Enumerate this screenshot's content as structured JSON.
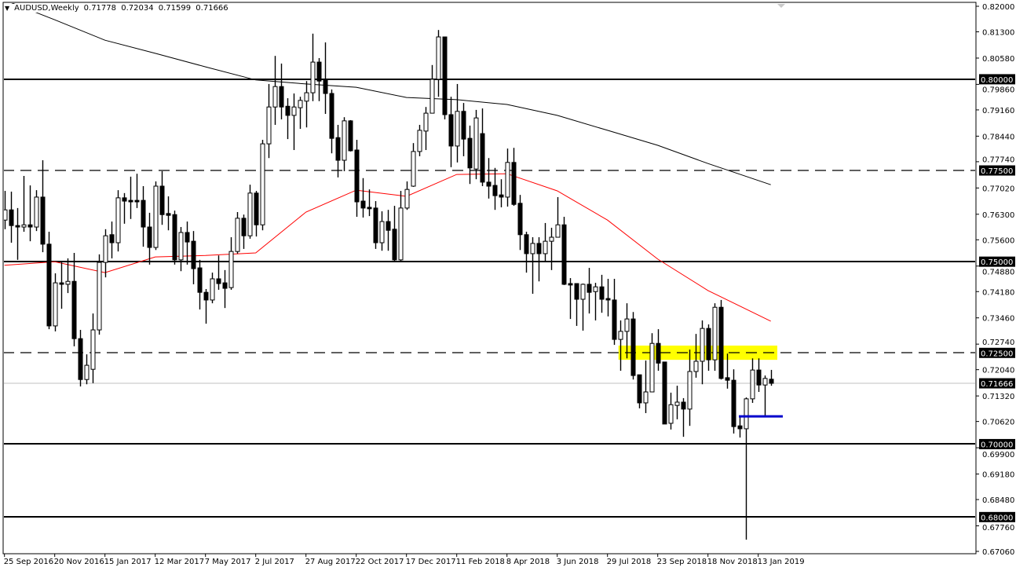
{
  "header": {
    "symbol": "AUDUSD,Weekly",
    "open": "0.71778",
    "high": "0.72034",
    "low": "0.71599",
    "close": "0.71666",
    "menu_icon": "triangle-down-icon"
  },
  "colors": {
    "background": "#ffffff",
    "candle_bull": "#ffffff",
    "candle_bear": "#000000",
    "ma_fast": "#ff0000",
    "ma_slow": "#000000",
    "zone": "#ffff00",
    "support_marker": "#0000cc",
    "current_price_line": "#c0c0c0"
  },
  "chart_data": {
    "type": "candlestick",
    "title": "AUDUSD,Weekly",
    "ylim": [
      0.6706,
      0.82
    ],
    "grid": false,
    "x_tick_labels": [
      "25 Sep 2016",
      "20 Nov 2016",
      "15 Jan 2017",
      "12 Mar 2017",
      "7 May 2017",
      "2 Jul 2017",
      "27 Aug 2017",
      "22 Oct 2017",
      "17 Dec 2017",
      "11 Feb 2018",
      "8 Apr 2018",
      "3 Jun 2018",
      "29 Jul 2018",
      "23 Sep 2018",
      "18 Nov 2018",
      "13 Jan 2019"
    ],
    "x_tick_every_n_candles": 8,
    "y_tick_labels": [
      "0.82000",
      "0.81300",
      "0.80580",
      "0.79860",
      "0.79160",
      "0.78440",
      "0.77740",
      "0.77020",
      "0.76300",
      "0.75600",
      "0.74880",
      "0.74180",
      "0.73460",
      "0.72740",
      "0.72040",
      "0.71320",
      "0.70620",
      "0.69900",
      "0.69180",
      "0.68480",
      "0.67760",
      "0.67060"
    ],
    "candles_ohlc": [
      [
        0.7614,
        0.7694,
        0.7589,
        0.7642
      ],
      [
        0.7642,
        0.7692,
        0.7552,
        0.7599
      ],
      [
        0.7599,
        0.7647,
        0.7505,
        0.7595
      ],
      [
        0.7595,
        0.7735,
        0.7582,
        0.7601
      ],
      [
        0.7601,
        0.7709,
        0.7556,
        0.7595
      ],
      [
        0.7595,
        0.7696,
        0.7584,
        0.7677
      ],
      [
        0.7677,
        0.7778,
        0.7526,
        0.7548
      ],
      [
        0.7548,
        0.7582,
        0.7315,
        0.7324
      ],
      [
        0.7324,
        0.7468,
        0.7309,
        0.7442
      ],
      [
        0.7442,
        0.7498,
        0.7371,
        0.7438
      ],
      [
        0.7438,
        0.7509,
        0.7414,
        0.7446
      ],
      [
        0.7446,
        0.7524,
        0.7268,
        0.7289
      ],
      [
        0.7289,
        0.7313,
        0.7158,
        0.7177
      ],
      [
        0.7177,
        0.7246,
        0.7164,
        0.7216
      ],
      [
        0.7205,
        0.7358,
        0.7167,
        0.7313
      ],
      [
        0.7313,
        0.752,
        0.73,
        0.7498
      ],
      [
        0.7498,
        0.7589,
        0.7457,
        0.7571
      ],
      [
        0.7574,
        0.761,
        0.7509,
        0.7552
      ],
      [
        0.7552,
        0.7696,
        0.7528,
        0.7675
      ],
      [
        0.7675,
        0.7688,
        0.7604,
        0.7666
      ],
      [
        0.7668,
        0.7733,
        0.7617,
        0.7664
      ],
      [
        0.7668,
        0.7741,
        0.7647,
        0.7664
      ],
      [
        0.7668,
        0.7707,
        0.7541,
        0.7595
      ],
      [
        0.7595,
        0.7634,
        0.7492,
        0.7539
      ],
      [
        0.7539,
        0.772,
        0.7532,
        0.7707
      ],
      [
        0.7707,
        0.7748,
        0.7601,
        0.7629
      ],
      [
        0.7632,
        0.7679,
        0.7586,
        0.7627
      ],
      [
        0.7629,
        0.764,
        0.7492,
        0.7505
      ],
      [
        0.7505,
        0.7595,
        0.7474,
        0.758
      ],
      [
        0.758,
        0.761,
        0.7492,
        0.7554
      ],
      [
        0.7556,
        0.7584,
        0.7438,
        0.7481
      ],
      [
        0.7483,
        0.7505,
        0.7369,
        0.7416
      ],
      [
        0.7416,
        0.7425,
        0.733,
        0.7395
      ],
      [
        0.7395,
        0.747,
        0.7386,
        0.7453
      ],
      [
        0.7453,
        0.7517,
        0.7423,
        0.744
      ],
      [
        0.7442,
        0.7477,
        0.7373,
        0.7427
      ],
      [
        0.7429,
        0.7567,
        0.7423,
        0.7528
      ],
      [
        0.7528,
        0.7636,
        0.7522,
        0.7619
      ],
      [
        0.7619,
        0.7629,
        0.7535,
        0.7571
      ],
      [
        0.7571,
        0.7711,
        0.7563,
        0.7688
      ],
      [
        0.7688,
        0.7694,
        0.7569,
        0.7601
      ],
      [
        0.7601,
        0.7834,
        0.7586,
        0.7823
      ],
      [
        0.7823,
        0.7987,
        0.7784,
        0.7924
      ],
      [
        0.7924,
        0.8064,
        0.7875,
        0.798
      ],
      [
        0.798,
        0.8043,
        0.789,
        0.7924
      ],
      [
        0.7926,
        0.7948,
        0.7836,
        0.7901
      ],
      [
        0.7901,
        0.7961,
        0.7806,
        0.7924
      ],
      [
        0.7922,
        0.7952,
        0.7864,
        0.7942
      ],
      [
        0.794,
        0.7995,
        0.7868,
        0.7963
      ],
      [
        0.7963,
        0.8125,
        0.794,
        0.8047
      ],
      [
        0.8047,
        0.8058,
        0.794,
        0.7995
      ],
      [
        0.8,
        0.8101,
        0.7905,
        0.7961
      ],
      [
        0.7961,
        0.7972,
        0.7797,
        0.7838
      ],
      [
        0.784,
        0.7875,
        0.7731,
        0.7778
      ],
      [
        0.7778,
        0.7896,
        0.7748,
        0.7886
      ],
      [
        0.7886,
        0.7888,
        0.7802,
        0.7804
      ],
      [
        0.7806,
        0.7834,
        0.7623,
        0.7664
      ],
      [
        0.7666,
        0.7729,
        0.7621,
        0.7647
      ],
      [
        0.7649,
        0.7698,
        0.7625,
        0.7645
      ],
      [
        0.7647,
        0.7666,
        0.7535,
        0.7552
      ],
      [
        0.7552,
        0.7638,
        0.753,
        0.761
      ],
      [
        0.761,
        0.7642,
        0.753,
        0.7586
      ],
      [
        0.7589,
        0.7653,
        0.7502,
        0.7505
      ],
      [
        0.7505,
        0.7694,
        0.7502,
        0.7647
      ],
      [
        0.7647,
        0.772,
        0.7642,
        0.7698
      ],
      [
        0.7707,
        0.7825,
        0.7705,
        0.7802
      ],
      [
        0.7802,
        0.7875,
        0.7789,
        0.786
      ],
      [
        0.7858,
        0.7924,
        0.7806,
        0.7907
      ],
      [
        0.7907,
        0.8039,
        0.7907,
        0.8
      ],
      [
        0.8,
        0.8135,
        0.7952,
        0.8116
      ],
      [
        0.8116,
        0.8116,
        0.789,
        0.7903
      ],
      [
        0.7903,
        0.7952,
        0.7759,
        0.7817
      ],
      [
        0.7817,
        0.7987,
        0.7772,
        0.7912
      ],
      [
        0.7912,
        0.7935,
        0.7789,
        0.7836
      ],
      [
        0.7838,
        0.7873,
        0.7713,
        0.7757
      ],
      [
        0.7754,
        0.7916,
        0.7726,
        0.7894
      ],
      [
        0.7851,
        0.792,
        0.7707,
        0.7718
      ],
      [
        0.7718,
        0.7784,
        0.7673,
        0.7707
      ],
      [
        0.7709,
        0.7757,
        0.7642,
        0.7681
      ],
      [
        0.7683,
        0.7726,
        0.7649,
        0.7677
      ],
      [
        0.7677,
        0.781,
        0.7651,
        0.7772
      ],
      [
        0.7772,
        0.7812,
        0.7653,
        0.7657
      ],
      [
        0.766,
        0.7683,
        0.7532,
        0.7574
      ],
      [
        0.7574,
        0.7582,
        0.747,
        0.7522
      ],
      [
        0.7522,
        0.7567,
        0.7412,
        0.755
      ],
      [
        0.755,
        0.7567,
        0.7446,
        0.7522
      ],
      [
        0.7522,
        0.7606,
        0.75,
        0.7556
      ],
      [
        0.7556,
        0.7593,
        0.7477,
        0.7567
      ],
      [
        0.7567,
        0.7677,
        0.7567,
        0.7601
      ],
      [
        0.7601,
        0.7623,
        0.7436,
        0.7438
      ],
      [
        0.744,
        0.7455,
        0.7343,
        0.7436
      ],
      [
        0.744,
        0.744,
        0.7324,
        0.7397
      ],
      [
        0.7397,
        0.744,
        0.7311,
        0.7438
      ],
      [
        0.7438,
        0.7483,
        0.7358,
        0.7416
      ],
      [
        0.7418,
        0.7442,
        0.7339,
        0.7431
      ],
      [
        0.7431,
        0.7464,
        0.736,
        0.7397
      ],
      [
        0.7399,
        0.7453,
        0.735,
        0.7395
      ],
      [
        0.7395,
        0.7453,
        0.7272,
        0.7287
      ],
      [
        0.7287,
        0.7339,
        0.7201,
        0.7309
      ],
      [
        0.7309,
        0.7386,
        0.7235,
        0.7343
      ],
      [
        0.7343,
        0.7362,
        0.7177,
        0.7188
      ],
      [
        0.719,
        0.719,
        0.7098,
        0.7113
      ],
      [
        0.7113,
        0.7229,
        0.7085,
        0.7143
      ],
      [
        0.7143,
        0.7304,
        0.7143,
        0.7276
      ],
      [
        0.7276,
        0.7315,
        0.7201,
        0.7222
      ],
      [
        0.7225,
        0.7225,
        0.7055,
        0.7055
      ],
      [
        0.7057,
        0.7141,
        0.704,
        0.7108
      ],
      [
        0.7106,
        0.716,
        0.7068,
        0.7115
      ],
      [
        0.7115,
        0.7126,
        0.702,
        0.7096
      ],
      [
        0.7096,
        0.7259,
        0.705,
        0.7199
      ],
      [
        0.7199,
        0.7302,
        0.7182,
        0.7227
      ],
      [
        0.7227,
        0.7339,
        0.7164,
        0.7317
      ],
      [
        0.7317,
        0.7328,
        0.7201,
        0.7231
      ],
      [
        0.7231,
        0.7386,
        0.7201,
        0.7375
      ],
      [
        0.7375,
        0.7395,
        0.7177,
        0.718
      ],
      [
        0.7182,
        0.7248,
        0.7152,
        0.7175
      ],
      [
        0.7175,
        0.7205,
        0.7029,
        0.7048
      ],
      [
        0.705,
        0.7076,
        0.7018,
        0.7042
      ],
      [
        0.7042,
        0.7128,
        0.6738,
        0.7124
      ],
      [
        0.7124,
        0.7235,
        0.7113,
        0.7203
      ],
      [
        0.7203,
        0.7235,
        0.7143,
        0.7162
      ],
      [
        0.7162,
        0.7188,
        0.7074,
        0.718
      ],
      [
        0.71778,
        0.72034,
        0.71599,
        0.71666
      ]
    ],
    "moving_averages": [
      {
        "color": "#ff0000",
        "values_at_x_ticks": [
          0.749,
          0.75,
          0.747,
          0.7513,
          0.7517,
          0.7524,
          0.7636,
          0.7696,
          0.7679,
          0.7739,
          0.7741,
          0.7694,
          0.7614,
          0.7507,
          0.7421
        ],
        "latest": 0.7337
      },
      {
        "color": "#000000",
        "values_at_x_ticks": [
          0.8217,
          0.8163,
          0.8107,
          0.8071,
          0.8034,
          0.7998,
          0.7987,
          0.7978,
          0.795,
          0.7944,
          0.7931,
          0.7901,
          0.786,
          0.7819,
          0.7769
        ],
        "latest": 0.7711
      }
    ],
    "horizontal_levels": [
      {
        "price": "0.80000",
        "style": "solid"
      },
      {
        "price": "0.77500",
        "style": "dashed"
      },
      {
        "price": "0.75000",
        "style": "solid"
      },
      {
        "price": "0.72500",
        "style": "dashed"
      },
      {
        "price": "0.70000",
        "style": "solid"
      },
      {
        "price": "0.68000",
        "style": "solid"
      }
    ],
    "current_price": "0.71666",
    "zone": {
      "from_price": 0.7231,
      "to_price": 0.727
    },
    "support_marker": {
      "price": 0.7076
    }
  }
}
